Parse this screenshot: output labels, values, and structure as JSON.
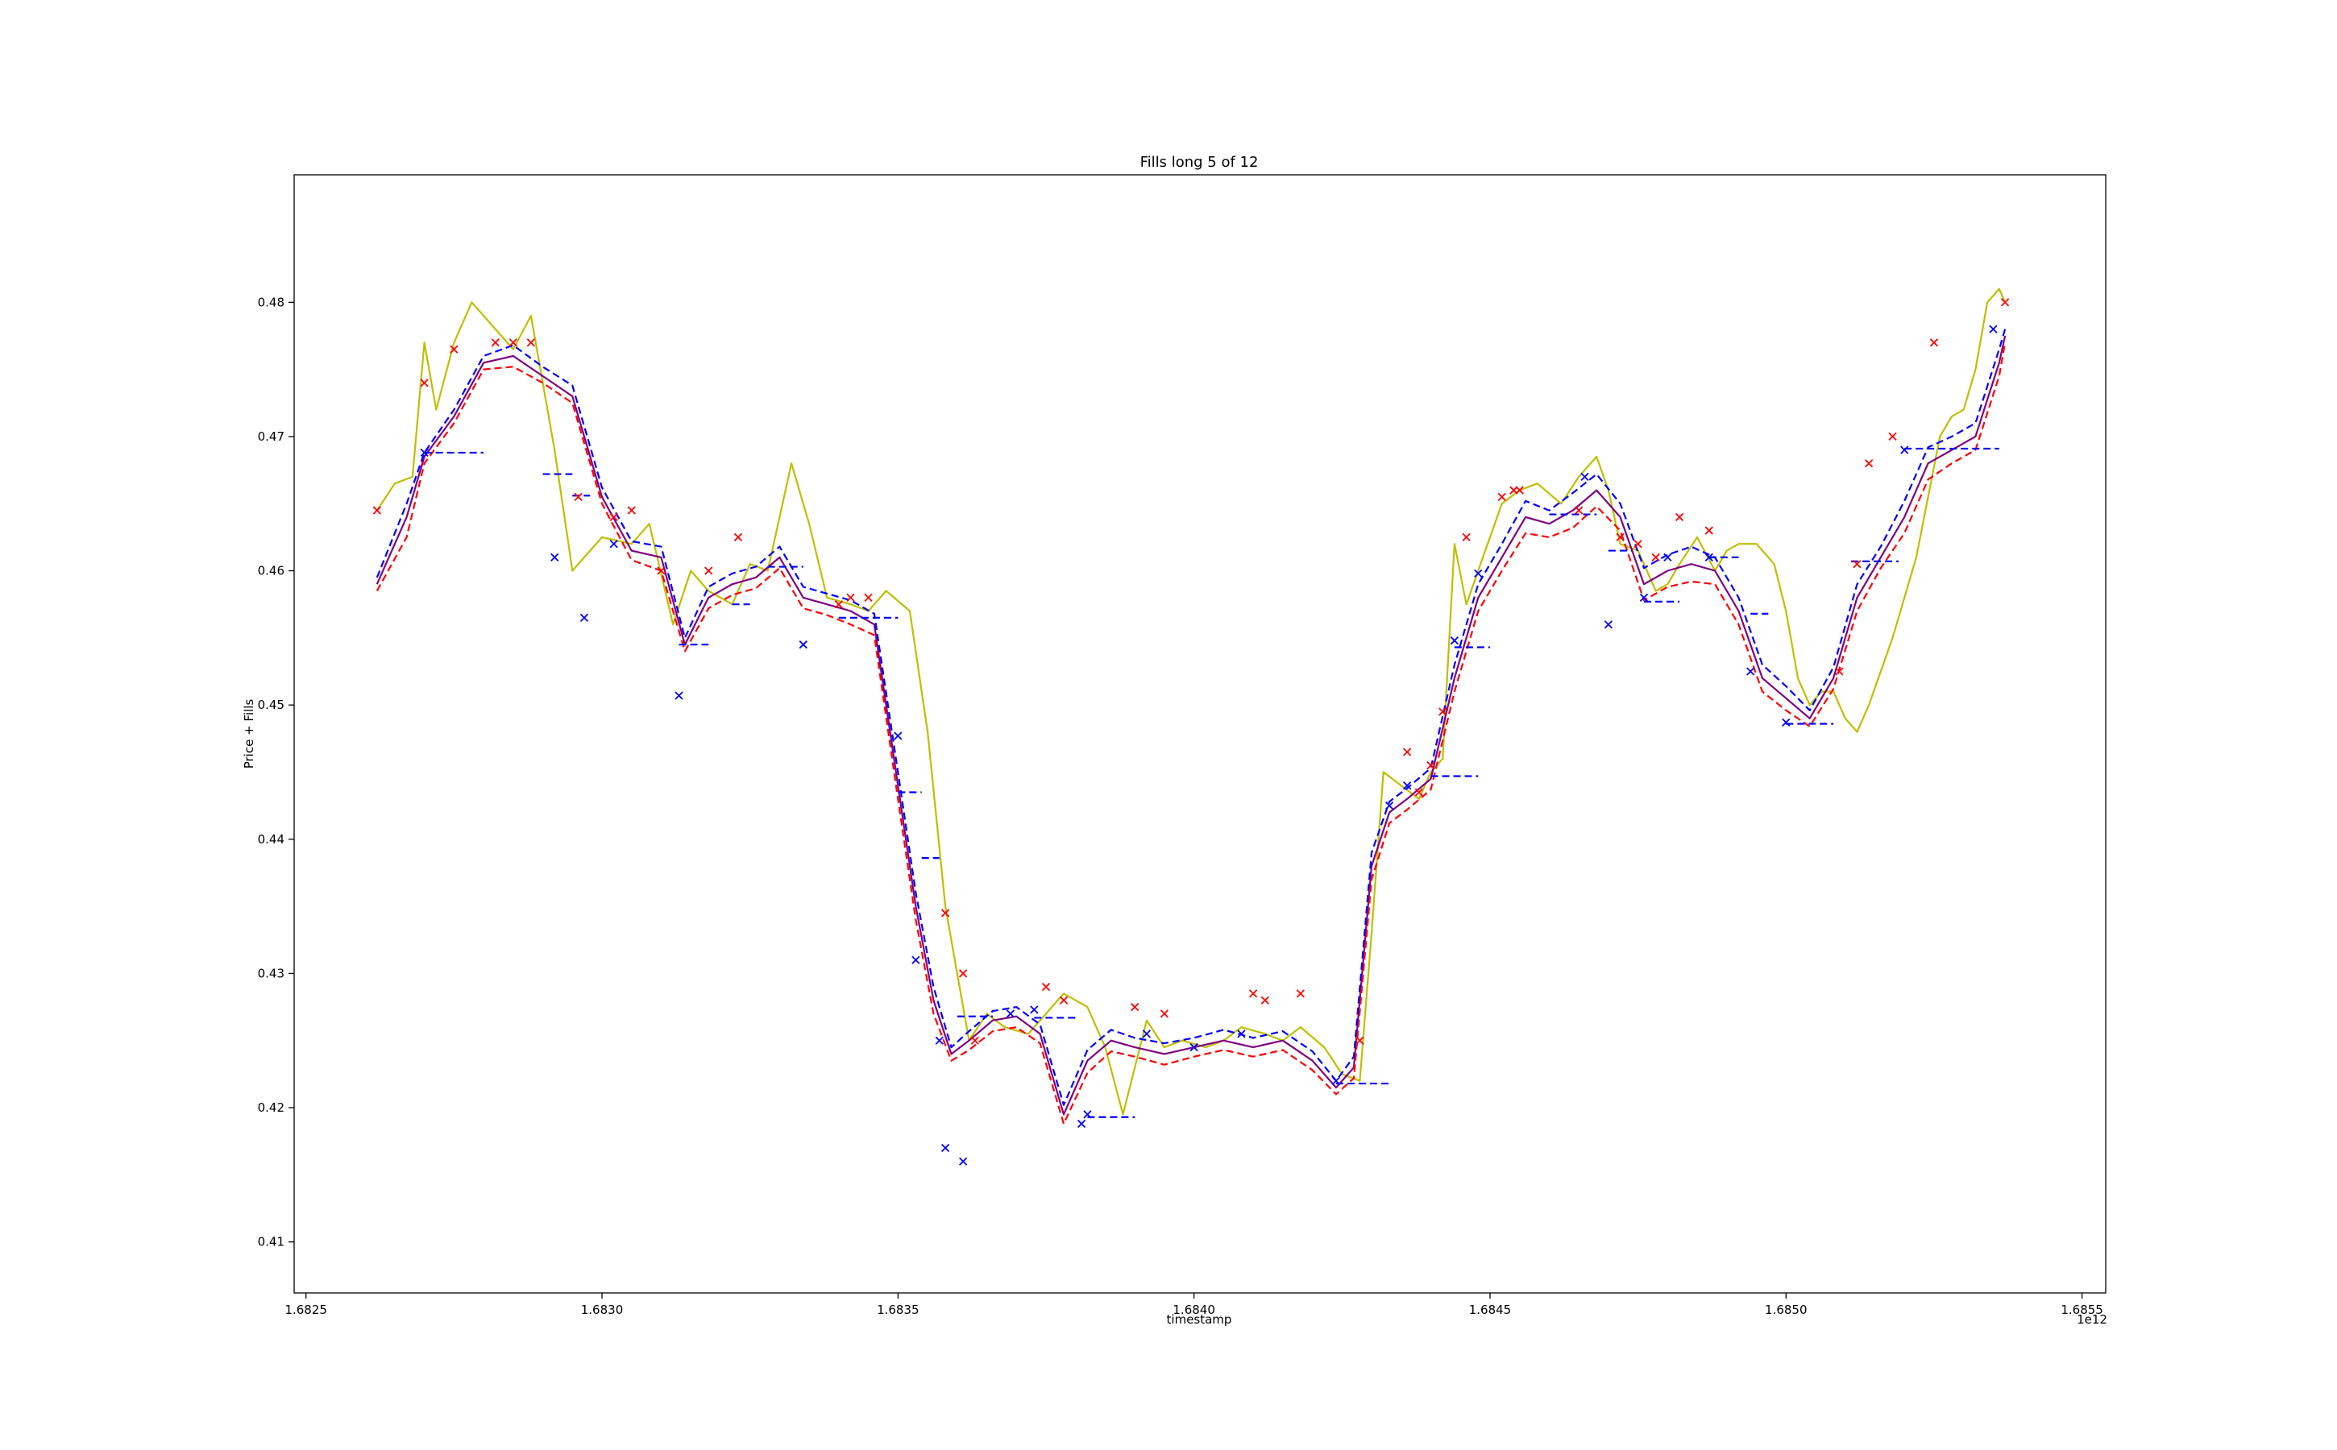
{
  "chart_data": {
    "type": "line",
    "title": "Fills long 5 of 12",
    "xlabel": "timestamp",
    "ylabel": "Price + Fills",
    "x_offset_label": "1e12",
    "xlim": [
      1.68248,
      1.68554
    ],
    "ylim": [
      0.4062,
      0.4895
    ],
    "x_ticks": [
      1.6825,
      1.683,
      1.6835,
      1.684,
      1.6845,
      1.685,
      1.6855
    ],
    "x_tick_labels": [
      "1.6825",
      "1.6830",
      "1.6835",
      "1.6840",
      "1.6845",
      "1.6850",
      "1.6855"
    ],
    "y_ticks": [
      0.41,
      0.42,
      0.43,
      0.44,
      0.45,
      0.46,
      0.47,
      0.48
    ],
    "y_tick_labels": [
      "0.41",
      "0.42",
      "0.43",
      "0.44",
      "0.45",
      "0.46",
      "0.47",
      "0.48"
    ],
    "grid": false,
    "legend": "none",
    "colors": {
      "price": "#bfbf00",
      "ema_solid": "#800080",
      "ema_red": "#ff0000",
      "ema_blue": "#0000ff",
      "buy_fill": "#0000ff",
      "sell_fill": "#ff0000",
      "position_price": "#0000ff"
    },
    "series": [
      {
        "kind": "price",
        "x": [
          1.68262,
          1.68265,
          1.68268,
          1.6827,
          1.68272,
          1.68275,
          1.68278,
          1.68282,
          1.68285,
          1.68288,
          1.68292,
          1.68295,
          1.683,
          1.68305,
          1.68308,
          1.68312,
          1.68315,
          1.68318,
          1.68322,
          1.68325,
          1.68328,
          1.68332,
          1.68335,
          1.68338,
          1.68342,
          1.68345,
          1.68348,
          1.68352,
          1.68355,
          1.68358,
          1.68362,
          1.68365,
          1.68368,
          1.68372,
          1.68375,
          1.68378,
          1.68382,
          1.68385,
          1.68388,
          1.68392,
          1.68395,
          1.68398,
          1.68402,
          1.68405,
          1.68408,
          1.68412,
          1.68415,
          1.68418,
          1.68422,
          1.68425,
          1.68428,
          1.6843,
          1.68432,
          1.68435,
          1.68438,
          1.6844,
          1.68442,
          1.68444,
          1.68446,
          1.68448,
          1.6845,
          1.68452,
          1.68455,
          1.68458,
          1.68462,
          1.68465,
          1.68468,
          1.6847,
          1.68472,
          1.68475,
          1.68478,
          1.6848,
          1.68482,
          1.68485,
          1.68488,
          1.6849,
          1.68492,
          1.68495,
          1.68498,
          1.685,
          1.68502,
          1.68504,
          1.68506,
          1.68508,
          1.6851,
          1.68512,
          1.68514,
          1.68516,
          1.68518,
          1.6852,
          1.68522,
          1.68524,
          1.68526,
          1.68528,
          1.6853,
          1.68532,
          1.68534,
          1.68536,
          1.68537
        ],
        "y": [
          0.4645,
          0.4665,
          0.467,
          0.477,
          0.472,
          0.477,
          0.48,
          0.478,
          0.4765,
          0.479,
          0.469,
          0.46,
          0.4625,
          0.462,
          0.4635,
          0.456,
          0.46,
          0.4585,
          0.4575,
          0.4605,
          0.46,
          0.468,
          0.4635,
          0.458,
          0.4575,
          0.457,
          0.4585,
          0.457,
          0.448,
          0.435,
          0.425,
          0.427,
          0.426,
          0.4255,
          0.427,
          0.4285,
          0.4275,
          0.4245,
          0.4195,
          0.4265,
          0.4245,
          0.425,
          0.4245,
          0.425,
          0.426,
          0.4255,
          0.425,
          0.426,
          0.4245,
          0.4225,
          0.422,
          0.433,
          0.445,
          0.444,
          0.443,
          0.445,
          0.446,
          0.462,
          0.4575,
          0.46,
          0.4625,
          0.465,
          0.466,
          0.4665,
          0.465,
          0.467,
          0.4685,
          0.466,
          0.462,
          0.4615,
          0.4585,
          0.459,
          0.4605,
          0.4625,
          0.46,
          0.4615,
          0.462,
          0.462,
          0.4605,
          0.457,
          0.452,
          0.45,
          0.451,
          0.451,
          0.449,
          0.448,
          0.45,
          0.4525,
          0.455,
          0.458,
          0.461,
          0.4655,
          0.47,
          0.4715,
          0.472,
          0.475,
          0.48,
          0.481,
          0.48
        ]
      },
      {
        "kind": "ema_solid",
        "x": [
          1.68262,
          1.68267,
          1.6827,
          1.68275,
          1.6828,
          1.68285,
          1.6829,
          1.68295,
          1.683,
          1.68305,
          1.6831,
          1.68314,
          1.68318,
          1.68322,
          1.68326,
          1.6833,
          1.68334,
          1.68338,
          1.68342,
          1.68346,
          1.6835,
          1.68353,
          1.68356,
          1.68359,
          1.68362,
          1.68366,
          1.6837,
          1.68374,
          1.68378,
          1.68382,
          1.68386,
          1.6839,
          1.68395,
          1.684,
          1.68405,
          1.6841,
          1.68415,
          1.6842,
          1.68424,
          1.68427,
          1.6843,
          1.68433,
          1.68436,
          1.6844,
          1.68444,
          1.68448,
          1.68452,
          1.68456,
          1.6846,
          1.68464,
          1.68468,
          1.68472,
          1.68476,
          1.6848,
          1.68484,
          1.68488,
          1.68492,
          1.68496,
          1.685,
          1.68504,
          1.68508,
          1.68512,
          1.68516,
          1.6852,
          1.68524,
          1.68528,
          1.68532,
          1.68536,
          1.68537
        ],
        "y": [
          0.459,
          0.464,
          0.4685,
          0.4715,
          0.4755,
          0.476,
          0.4745,
          0.473,
          0.4655,
          0.4615,
          0.461,
          0.4545,
          0.458,
          0.459,
          0.4595,
          0.461,
          0.458,
          0.4575,
          0.457,
          0.456,
          0.444,
          0.435,
          0.428,
          0.424,
          0.425,
          0.4265,
          0.4268,
          0.4255,
          0.4195,
          0.4235,
          0.425,
          0.4245,
          0.424,
          0.4245,
          0.425,
          0.4245,
          0.425,
          0.4235,
          0.4215,
          0.423,
          0.438,
          0.442,
          0.443,
          0.4445,
          0.452,
          0.458,
          0.461,
          0.464,
          0.4635,
          0.4645,
          0.466,
          0.464,
          0.459,
          0.46,
          0.4605,
          0.46,
          0.457,
          0.452,
          0.4505,
          0.449,
          0.452,
          0.458,
          0.461,
          0.464,
          0.468,
          0.469,
          0.47,
          0.4755,
          0.4775
        ]
      },
      {
        "kind": "ema_red",
        "x": [
          1.68262,
          1.68267,
          1.6827,
          1.68275,
          1.6828,
          1.68285,
          1.6829,
          1.68295,
          1.683,
          1.68305,
          1.6831,
          1.68314,
          1.68318,
          1.68322,
          1.68326,
          1.6833,
          1.68334,
          1.68338,
          1.68342,
          1.68346,
          1.6835,
          1.68353,
          1.68356,
          1.68359,
          1.68362,
          1.68366,
          1.6837,
          1.68374,
          1.68378,
          1.68382,
          1.68386,
          1.6839,
          1.68395,
          1.684,
          1.68405,
          1.6841,
          1.68415,
          1.6842,
          1.68424,
          1.68427,
          1.6843,
          1.68433,
          1.68436,
          1.6844,
          1.68444,
          1.68448,
          1.68452,
          1.68456,
          1.6846,
          1.68464,
          1.68468,
          1.68472,
          1.68476,
          1.6848,
          1.68484,
          1.68488,
          1.68492,
          1.68496,
          1.685,
          1.68504,
          1.68508,
          1.68512,
          1.68516,
          1.6852,
          1.68524,
          1.68528,
          1.68532,
          1.68536,
          1.68537
        ],
        "y": [
          0.4585,
          0.4625,
          0.468,
          0.471,
          0.475,
          0.4752,
          0.474,
          0.4725,
          0.465,
          0.4608,
          0.46,
          0.454,
          0.4572,
          0.4582,
          0.4587,
          0.4602,
          0.4572,
          0.4567,
          0.456,
          0.4552,
          0.443,
          0.434,
          0.427,
          0.4235,
          0.4243,
          0.4257,
          0.426,
          0.4248,
          0.4188,
          0.4226,
          0.4242,
          0.4238,
          0.4232,
          0.4238,
          0.4243,
          0.4238,
          0.4243,
          0.4228,
          0.421,
          0.4222,
          0.437,
          0.4412,
          0.4422,
          0.4437,
          0.451,
          0.457,
          0.46,
          0.4628,
          0.4625,
          0.4632,
          0.4648,
          0.463,
          0.4578,
          0.4588,
          0.4592,
          0.459,
          0.456,
          0.451,
          0.4496,
          0.4484,
          0.4512,
          0.457,
          0.4602,
          0.4628,
          0.4668,
          0.468,
          0.469,
          0.4745,
          0.477
        ]
      },
      {
        "kind": "ema_blue",
        "x": [
          1.68262,
          1.68267,
          1.6827,
          1.68275,
          1.6828,
          1.68285,
          1.6829,
          1.68295,
          1.683,
          1.68305,
          1.6831,
          1.68314,
          1.68318,
          1.68322,
          1.68326,
          1.6833,
          1.68334,
          1.68338,
          1.68342,
          1.68346,
          1.6835,
          1.68353,
          1.68356,
          1.68359,
          1.68362,
          1.68366,
          1.6837,
          1.68374,
          1.68378,
          1.68382,
          1.68386,
          1.6839,
          1.68395,
          1.684,
          1.68405,
          1.6841,
          1.68415,
          1.6842,
          1.68424,
          1.68427,
          1.6843,
          1.68433,
          1.68436,
          1.6844,
          1.68444,
          1.68448,
          1.68452,
          1.68456,
          1.6846,
          1.68464,
          1.68468,
          1.68472,
          1.68476,
          1.6848,
          1.68484,
          1.68488,
          1.68492,
          1.68496,
          1.685,
          1.68504,
          1.68508,
          1.68512,
          1.68516,
          1.6852,
          1.68524,
          1.68528,
          1.68532,
          1.68536,
          1.68537
        ],
        "y": [
          0.4595,
          0.465,
          0.4688,
          0.472,
          0.476,
          0.4768,
          0.4752,
          0.4738,
          0.4662,
          0.4622,
          0.4618,
          0.455,
          0.4588,
          0.4598,
          0.4603,
          0.4618,
          0.4588,
          0.4583,
          0.4578,
          0.4568,
          0.445,
          0.436,
          0.429,
          0.4245,
          0.4257,
          0.4272,
          0.4275,
          0.4262,
          0.4202,
          0.4243,
          0.4258,
          0.4252,
          0.4248,
          0.4252,
          0.4258,
          0.4252,
          0.4257,
          0.4242,
          0.422,
          0.4238,
          0.439,
          0.4428,
          0.4438,
          0.4453,
          0.453,
          0.459,
          0.462,
          0.4652,
          0.4645,
          0.4658,
          0.4672,
          0.465,
          0.4602,
          0.4612,
          0.4618,
          0.461,
          0.458,
          0.453,
          0.4514,
          0.4496,
          0.4528,
          0.459,
          0.4618,
          0.4652,
          0.4692,
          0.47,
          0.471,
          0.4765,
          0.478
        ]
      }
    ],
    "sell_fills": {
      "x": [
        1.68262,
        1.6827,
        1.68275,
        1.68282,
        1.68285,
        1.68288,
        1.68296,
        1.68302,
        1.68305,
        1.6831,
        1.68318,
        1.68323,
        1.6834,
        1.68342,
        1.68345,
        1.68358,
        1.68361,
        1.68363,
        1.68375,
        1.68378,
        1.6839,
        1.68395,
        1.6841,
        1.68412,
        1.68418,
        1.68428,
        1.68436,
        1.68438,
        1.6844,
        1.68442,
        1.68446,
        1.68452,
        1.68454,
        1.68455,
        1.68465,
        1.68472,
        1.68475,
        1.68478,
        1.68482,
        1.68487,
        1.68509,
        1.68512,
        1.68514,
        1.68518,
        1.68525,
        1.68537
      ],
      "y": [
        0.4645,
        0.474,
        0.4765,
        0.477,
        0.477,
        0.477,
        0.4655,
        0.464,
        0.4645,
        0.46,
        0.46,
        0.4625,
        0.4575,
        0.458,
        0.458,
        0.4345,
        0.43,
        0.425,
        0.429,
        0.428,
        0.4275,
        0.427,
        0.4285,
        0.428,
        0.4285,
        0.425,
        0.4465,
        0.4435,
        0.4455,
        0.4495,
        0.4625,
        0.4655,
        0.466,
        0.466,
        0.4645,
        0.4625,
        0.462,
        0.461,
        0.464,
        0.463,
        0.4525,
        0.4605,
        0.468,
        0.47,
        0.477,
        0.48
      ]
    },
    "buy_fills": {
      "x": [
        1.6827,
        1.68292,
        1.68297,
        1.68302,
        1.68313,
        1.68334,
        1.6835,
        1.68353,
        1.68357,
        1.68358,
        1.68361,
        1.68369,
        1.68373,
        1.68381,
        1.68382,
        1.68392,
        1.684,
        1.68408,
        1.68424,
        1.68433,
        1.68436,
        1.68444,
        1.68448,
        1.68466,
        1.6847,
        1.68476,
        1.6848,
        1.68487,
        1.68494,
        1.685,
        1.6852,
        1.68535
      ],
      "y": [
        0.4688,
        0.461,
        0.4565,
        0.462,
        0.4507,
        0.4545,
        0.4477,
        0.431,
        0.425,
        0.417,
        0.416,
        0.427,
        0.4273,
        0.4188,
        0.4195,
        0.4255,
        0.4245,
        0.4255,
        0.422,
        0.4425,
        0.444,
        0.4548,
        0.4598,
        0.467,
        0.456,
        0.458,
        0.461,
        0.461,
        0.4525,
        0.4487,
        0.469,
        0.478
      ]
    },
    "position_price_segments": [
      {
        "x": [
          1.6827,
          1.6828
        ],
        "y": 0.4688
      },
      {
        "x": [
          1.6829,
          1.68295
        ],
        "y": 0.4672
      },
      {
        "x": [
          1.68295,
          1.68298
        ],
        "y": 0.4656
      },
      {
        "x": [
          1.68313,
          1.68318
        ],
        "y": 0.4545
      },
      {
        "x": [
          1.68322,
          1.68325
        ],
        "y": 0.4575
      },
      {
        "x": [
          1.68328,
          1.68334
        ],
        "y": 0.4603
      },
      {
        "x": [
          1.6834,
          1.6835
        ],
        "y": 0.4565
      },
      {
        "x": [
          1.6835,
          1.68354
        ],
        "y": 0.4435
      },
      {
        "x": [
          1.68354,
          1.68357
        ],
        "y": 0.4386
      },
      {
        "x": [
          1.6836,
          1.68366
        ],
        "y": 0.4268
      },
      {
        "x": [
          1.68373,
          1.6838
        ],
        "y": 0.4267
      },
      {
        "x": [
          1.68382,
          1.6839
        ],
        "y": 0.4193
      },
      {
        "x": [
          1.68424,
          1.68433
        ],
        "y": 0.4218
      },
      {
        "x": [
          1.6844,
          1.68448
        ],
        "y": 0.4447
      },
      {
        "x": [
          1.68444,
          1.6845
        ],
        "y": 0.4543
      },
      {
        "x": [
          1.6846,
          1.68468
        ],
        "y": 0.4642
      },
      {
        "x": [
          1.6847,
          1.68474
        ],
        "y": 0.4615
      },
      {
        "x": [
          1.68476,
          1.68482
        ],
        "y": 0.4577
      },
      {
        "x": [
          1.68487,
          1.68492
        ],
        "y": 0.461
      },
      {
        "x": [
          1.68494,
          1.68497
        ],
        "y": 0.4568
      },
      {
        "x": [
          1.685,
          1.68508
        ],
        "y": 0.4486
      },
      {
        "x": [
          1.68511,
          1.68519
        ],
        "y": 0.4607
      },
      {
        "x": [
          1.6852,
          1.68536
        ],
        "y": 0.4691
      }
    ]
  }
}
